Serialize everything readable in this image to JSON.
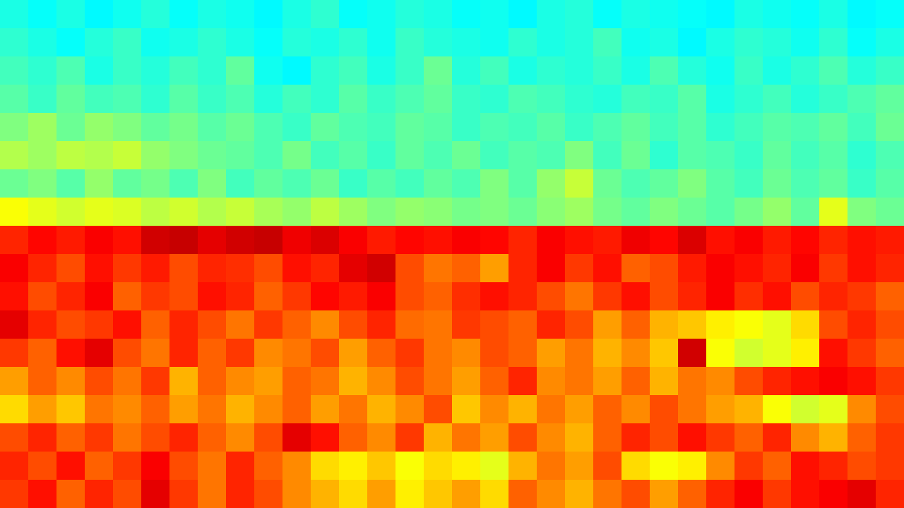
{
  "chart_data": {
    "type": "heatmap",
    "color": "jet",
    "zlim": [
      0,
      1
    ],
    "tick_labels": false,
    "cells": [
      [
        0.4,
        0.38,
        0.4,
        0.37,
        0.39,
        0.41,
        0.38,
        0.4,
        0.39,
        0.37,
        0.4,
        0.42,
        0.38,
        0.39,
        0.41,
        0.4,
        0.38,
        0.39,
        0.37,
        0.4,
        0.41,
        0.38,
        0.4,
        0.39,
        0.38,
        0.37,
        0.4,
        0.39,
        0.38,
        0.4,
        0.37,
        0.38
      ],
      [
        0.42,
        0.4,
        0.38,
        0.41,
        0.43,
        0.39,
        0.4,
        0.42,
        0.4,
        0.38,
        0.41,
        0.4,
        0.42,
        0.39,
        0.43,
        0.41,
        0.4,
        0.39,
        0.42,
        0.4,
        0.41,
        0.44,
        0.39,
        0.4,
        0.37,
        0.4,
        0.42,
        0.41,
        0.39,
        0.42,
        0.38,
        0.4
      ],
      [
        0.44,
        0.42,
        0.45,
        0.4,
        0.43,
        0.41,
        0.44,
        0.42,
        0.47,
        0.39,
        0.37,
        0.42,
        0.44,
        0.4,
        0.43,
        0.48,
        0.41,
        0.44,
        0.4,
        0.42,
        0.41,
        0.43,
        0.4,
        0.45,
        0.41,
        0.39,
        0.43,
        0.4,
        0.42,
        0.45,
        0.41,
        0.43
      ],
      [
        0.46,
        0.43,
        0.47,
        0.44,
        0.45,
        0.42,
        0.46,
        0.43,
        0.45,
        0.41,
        0.44,
        0.42,
        0.46,
        0.43,
        0.45,
        0.47,
        0.43,
        0.42,
        0.45,
        0.44,
        0.42,
        0.41,
        0.44,
        0.43,
        0.46,
        0.4,
        0.42,
        0.44,
        0.41,
        0.43,
        0.45,
        0.47
      ],
      [
        0.5,
        0.53,
        0.48,
        0.52,
        0.5,
        0.47,
        0.49,
        0.46,
        0.48,
        0.45,
        0.43,
        0.47,
        0.45,
        0.44,
        0.47,
        0.46,
        0.43,
        0.45,
        0.44,
        0.46,
        0.43,
        0.45,
        0.47,
        0.44,
        0.46,
        0.42,
        0.44,
        0.46,
        0.45,
        0.47,
        0.44,
        0.48
      ],
      [
        0.55,
        0.53,
        0.56,
        0.55,
        0.57,
        0.52,
        0.5,
        0.48,
        0.47,
        0.45,
        0.49,
        0.44,
        0.46,
        0.43,
        0.47,
        0.45,
        0.48,
        0.44,
        0.46,
        0.45,
        0.5,
        0.44,
        0.48,
        0.42,
        0.46,
        0.45,
        0.43,
        0.47,
        0.44,
        0.46,
        0.42,
        0.45
      ],
      [
        0.48,
        0.5,
        0.46,
        0.52,
        0.47,
        0.49,
        0.45,
        0.5,
        0.44,
        0.47,
        0.45,
        0.48,
        0.43,
        0.46,
        0.44,
        0.47,
        0.45,
        0.5,
        0.46,
        0.52,
        0.57,
        0.48,
        0.45,
        0.47,
        0.5,
        0.46,
        0.44,
        0.48,
        0.45,
        0.47,
        0.43,
        0.46
      ],
      [
        0.62,
        0.6,
        0.58,
        0.6,
        0.59,
        0.56,
        0.58,
        0.55,
        0.57,
        0.54,
        0.52,
        0.56,
        0.53,
        0.5,
        0.52,
        0.51,
        0.49,
        0.5,
        0.48,
        0.51,
        0.53,
        0.49,
        0.47,
        0.5,
        0.48,
        0.46,
        0.49,
        0.52,
        0.47,
        0.6,
        0.5,
        0.48
      ],
      [
        0.84,
        0.87,
        0.85,
        0.88,
        0.86,
        0.92,
        0.93,
        0.9,
        0.92,
        0.93,
        0.89,
        0.91,
        0.88,
        0.85,
        0.87,
        0.86,
        0.88,
        0.87,
        0.84,
        0.88,
        0.86,
        0.85,
        0.89,
        0.87,
        0.91,
        0.86,
        0.88,
        0.85,
        0.87,
        0.84,
        0.86,
        0.85
      ],
      [
        0.88,
        0.84,
        0.8,
        0.86,
        0.82,
        0.85,
        0.8,
        0.84,
        0.83,
        0.8,
        0.86,
        0.84,
        0.9,
        0.92,
        0.8,
        0.76,
        0.78,
        0.72,
        0.84,
        0.88,
        0.82,
        0.86,
        0.78,
        0.8,
        0.85,
        0.88,
        0.86,
        0.84,
        0.88,
        0.82,
        0.86,
        0.84
      ],
      [
        0.86,
        0.8,
        0.84,
        0.88,
        0.78,
        0.82,
        0.8,
        0.86,
        0.84,
        0.78,
        0.82,
        0.87,
        0.85,
        0.88,
        0.8,
        0.78,
        0.83,
        0.86,
        0.84,
        0.8,
        0.76,
        0.82,
        0.86,
        0.8,
        0.84,
        0.88,
        0.83,
        0.86,
        0.8,
        0.84,
        0.82,
        0.78
      ],
      [
        0.9,
        0.84,
        0.8,
        0.82,
        0.86,
        0.78,
        0.84,
        0.8,
        0.76,
        0.82,
        0.78,
        0.74,
        0.8,
        0.84,
        0.77,
        0.76,
        0.82,
        0.8,
        0.78,
        0.84,
        0.8,
        0.72,
        0.78,
        0.7,
        0.68,
        0.64,
        0.62,
        0.6,
        0.66,
        0.8,
        0.84,
        0.8
      ],
      [
        0.82,
        0.78,
        0.86,
        0.9,
        0.8,
        0.76,
        0.84,
        0.78,
        0.82,
        0.74,
        0.76,
        0.8,
        0.72,
        0.78,
        0.82,
        0.76,
        0.74,
        0.8,
        0.78,
        0.72,
        0.76,
        0.7,
        0.74,
        0.68,
        0.92,
        0.62,
        0.58,
        0.6,
        0.64,
        0.86,
        0.82,
        0.78
      ],
      [
        0.72,
        0.78,
        0.74,
        0.8,
        0.76,
        0.82,
        0.7,
        0.78,
        0.74,
        0.72,
        0.78,
        0.76,
        0.7,
        0.74,
        0.8,
        0.76,
        0.72,
        0.78,
        0.84,
        0.74,
        0.76,
        0.72,
        0.78,
        0.7,
        0.76,
        0.74,
        0.8,
        0.84,
        0.86,
        0.88,
        0.86,
        0.82
      ],
      [
        0.66,
        0.72,
        0.68,
        0.76,
        0.74,
        0.78,
        0.72,
        0.76,
        0.7,
        0.74,
        0.78,
        0.72,
        0.76,
        0.7,
        0.74,
        0.8,
        0.68,
        0.74,
        0.7,
        0.76,
        0.72,
        0.78,
        0.74,
        0.8,
        0.76,
        0.72,
        0.7,
        0.62,
        0.58,
        0.6,
        0.74,
        0.8
      ],
      [
        0.8,
        0.84,
        0.78,
        0.82,
        0.76,
        0.8,
        0.84,
        0.78,
        0.74,
        0.8,
        0.9,
        0.86,
        0.78,
        0.74,
        0.82,
        0.7,
        0.76,
        0.72,
        0.8,
        0.74,
        0.7,
        0.78,
        0.84,
        0.8,
        0.86,
        0.82,
        0.78,
        0.84,
        0.74,
        0.7,
        0.78,
        0.82
      ],
      [
        0.84,
        0.8,
        0.86,
        0.78,
        0.82,
        0.88,
        0.8,
        0.76,
        0.84,
        0.78,
        0.74,
        0.66,
        0.64,
        0.68,
        0.62,
        0.66,
        0.64,
        0.6,
        0.7,
        0.76,
        0.72,
        0.8,
        0.66,
        0.62,
        0.64,
        0.74,
        0.82,
        0.78,
        0.86,
        0.84,
        0.8,
        0.82
      ],
      [
        0.82,
        0.86,
        0.78,
        0.84,
        0.8,
        0.9,
        0.82,
        0.76,
        0.84,
        0.8,
        0.74,
        0.7,
        0.66,
        0.72,
        0.64,
        0.68,
        0.72,
        0.66,
        0.78,
        0.74,
        0.7,
        0.76,
        0.8,
        0.72,
        0.78,
        0.84,
        0.88,
        0.82,
        0.86,
        0.88,
        0.9,
        0.84
      ]
    ]
  }
}
